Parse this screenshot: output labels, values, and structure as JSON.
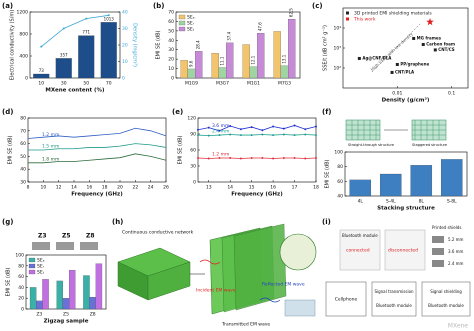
{
  "chart_data": [
    {
      "type": "bar",
      "label": "(a)",
      "xlabel": "MXene content (%)",
      "ylabel": "Electrical conductivity (S/m)",
      "y2label": "Density (mg/cm³)",
      "categories": [
        "10",
        "30",
        "50",
        "70"
      ],
      "series": [
        {
          "color": "#1d4e89",
          "values": [
            73,
            357,
            771,
            1013
          ],
          "show_values": true
        },
        {
          "color": "#3aa6d8",
          "values": [
            19,
            30,
            36,
            38
          ],
          "axis": "y2",
          "mark": "line",
          "markers": true
        }
      ],
      "ylim": [
        0,
        1200
      ],
      "yticks": [
        0,
        400,
        800,
        1200
      ],
      "y2lim": [
        0,
        40
      ],
      "y2ticks": [
        0,
        10,
        20,
        30,
        40
      ]
    },
    {
      "type": "bar",
      "label": "(b)",
      "ylabel": "EMI SE (dB)",
      "legend": "upper left",
      "categories": [
        "M1G9",
        "M3G7",
        "M1G1",
        "M7G3"
      ],
      "series": [
        {
          "name": "SEₐ",
          "color": "#f2c46d",
          "values": [
            18.8,
            26.3,
            35.5,
            49.4
          ]
        },
        {
          "name": "SEᵣ",
          "color": "#9fd4a3",
          "values": [
            9.6,
            11.1,
            12.1,
            13.1
          ],
          "show_values": true
        },
        {
          "name": "SEₜ",
          "color": "#c68ad6",
          "values": [
            28.4,
            37.4,
            47.6,
            62.5
          ],
          "show_values": true
        }
      ],
      "ylim": [
        0,
        70
      ],
      "yticks": [
        0,
        10,
        20,
        30,
        40,
        50,
        60,
        70
      ]
    },
    {
      "type": "scatter",
      "label": "(c)",
      "xlabel": "Density (g/cm³)",
      "ylabel": "SSE/t (dB cm² g⁻¹)",
      "legend": "upper left",
      "annotation": "High SSE/t with low density",
      "log_x": true,
      "log_y": true,
      "series": [
        {
          "name": "3D printed EMI shielding materials",
          "color": "#222222",
          "marker": "square",
          "x": [
            0.02,
            0.03,
            0.05,
            0.002,
            0.01,
            0.008
          ],
          "values": [
            3000,
            1500,
            800,
            300,
            150,
            60
          ],
          "point_labels": [
            "MG frames",
            "Carbon foam",
            "CNT/CS",
            "Ag@CNF/PLA",
            "PP/graphene",
            "CNT/PLA"
          ]
        },
        {
          "name": "This work",
          "color": "#e02020",
          "marker": "star",
          "x": [
            0.04
          ],
          "values": [
            20000
          ]
        }
      ],
      "xlim": [
        0.001,
        0.2
      ],
      "xticks": [
        0.01,
        0.1
      ],
      "ylim": [
        10,
        100000
      ],
      "yticks": [
        {
          "value": 100,
          "label": "10²"
        },
        {
          "value": 1000,
          "label": "10³"
        },
        {
          "value": 10000,
          "label": "10⁴"
        }
      ]
    },
    {
      "type": "line",
      "label": "(d)",
      "xlabel": "Frequency (GHz)",
      "ylabel": "EMI SE (dB)",
      "legend": "inline",
      "x": [
        8,
        10,
        12,
        14,
        16,
        18,
        20,
        22,
        24,
        26
      ],
      "series": [
        {
          "name": "1.2 mm",
          "color": "#2f5fc4",
          "values": [
            64,
            65,
            66,
            65,
            66,
            67,
            68,
            72,
            70,
            66
          ]
        },
        {
          "name": "1.5 mm",
          "color": "#1f9a8a",
          "values": [
            55,
            55,
            56,
            56,
            57,
            57,
            58,
            60,
            59,
            57
          ]
        },
        {
          "name": "1.8 mm",
          "color": "#2e6b3c",
          "values": [
            45,
            45,
            46,
            46,
            47,
            48,
            49,
            52,
            50,
            47
          ]
        }
      ],
      "xlim": [
        8,
        26
      ],
      "xticks": [
        8,
        10,
        12,
        14,
        16,
        18,
        20,
        22,
        24,
        26
      ],
      "ylim": [
        30,
        80
      ],
      "yticks": [
        30,
        40,
        50,
        60,
        70,
        80
      ]
    },
    {
      "type": "line",
      "label": "(e)",
      "xlabel": "Frequency (GHz)",
      "ylabel": "EMI SE (dB)",
      "legend": "inline",
      "x": [
        12.5,
        13,
        13.5,
        14,
        14.5,
        15,
        15.5,
        16,
        16.5,
        17,
        17.5,
        18
      ],
      "series": [
        {
          "name": "3.6 mm",
          "color": "#2030d0",
          "markers": true,
          "values": [
            98,
            102,
            96,
            105,
            99,
            103,
            97,
            104,
            100,
            106,
            99,
            104
          ]
        },
        {
          "name": "2.4 mm",
          "color": "#20a090",
          "markers": true,
          "values": [
            88,
            87,
            88,
            89,
            88,
            88,
            89,
            88,
            89,
            88,
            89,
            88
          ]
        },
        {
          "name": "1.2 mm",
          "color": "#e03040",
          "markers": true,
          "values": [
            45,
            44,
            45,
            45,
            44,
            45,
            45,
            44,
            45,
            45,
            44,
            45
          ]
        }
      ],
      "xlim": [
        12.5,
        18
      ],
      "xticks": [
        13,
        14,
        15,
        16,
        17,
        18
      ],
      "ylim": [
        0,
        120
      ],
      "yticks": [
        0,
        30,
        60,
        90,
        120
      ]
    },
    {
      "type": "bar",
      "label": "(f)",
      "xlabel": "Stacking structure",
      "ylabel": "EMI SE (dB)",
      "inset_labels": [
        "Straight-through structure",
        "Staggered structure"
      ],
      "categories": [
        "4L",
        "S-4L",
        "8L",
        "S-8L"
      ],
      "series": [
        {
          "color": "#3d7fc1",
          "values": [
            62,
            70,
            82,
            90
          ]
        }
      ],
      "ylim": [
        40,
        100
      ],
      "yticks": [
        40,
        60,
        80,
        100
      ]
    },
    {
      "type": "bar",
      "label": "(g)",
      "xlabel": "Zigzag sample",
      "ylabel": "EMI SE (dB)",
      "legend": "upper left",
      "categories": [
        "Z3",
        "Z5",
        "Z8"
      ],
      "series": [
        {
          "name": "SEₐ",
          "color": "#3bb0a8",
          "values": [
            40,
            52,
            62
          ]
        },
        {
          "name": "SEᵣ",
          "color": "#6a70d8",
          "values": [
            15,
            20,
            22
          ]
        },
        {
          "name": "SEₜ",
          "color": "#c070e0",
          "values": [
            55,
            72,
            84
          ]
        }
      ],
      "ylim": [
        0,
        100
      ],
      "yticks": [
        0,
        20,
        40,
        60,
        80,
        100
      ]
    }
  ],
  "panel_h": {
    "label": "(h)",
    "network": "Continuous conductive network",
    "incident": "Incident EM wave",
    "reflected": "Reflected EM wave",
    "transmitted": "Transmitted EM wave"
  },
  "panel_i": {
    "label": "(i)",
    "bluetooth": "Bluetooth module",
    "connected": "connected",
    "disconnected": "disconnected",
    "printed_shields": "Printed shields",
    "thickness": [
      "5.2 mm",
      "3.6 mm",
      "2.4 mm"
    ],
    "cellphone": "Cellphone",
    "steps": [
      "Signal transmission",
      "Signal shielding"
    ],
    "modules": [
      "Bluetooth module",
      "Bluetooth module"
    ]
  },
  "watermark": "MXene"
}
